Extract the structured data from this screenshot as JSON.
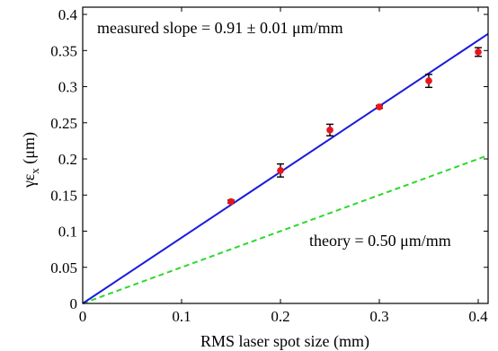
{
  "chart_data": {
    "type": "scatter",
    "xlabel": "RMS laser spot size (mm)",
    "ylabel_main": "γε",
    "ylabel_sub": "x",
    "ylabel_unit": " (μm)",
    "xlim": [
      0,
      0.41
    ],
    "ylim": [
      0,
      0.41
    ],
    "x_ticks": [
      0,
      0.1,
      0.2,
      0.3,
      0.4
    ],
    "x_tick_labels": [
      "0",
      "0.1",
      "0.2",
      "0.3",
      "0.4"
    ],
    "y_ticks": [
      0,
      0.05,
      0.1,
      0.15,
      0.2,
      0.25,
      0.3,
      0.35,
      0.4
    ],
    "y_tick_labels": [
      "0",
      "0.05",
      "0.1",
      "0.15",
      "0.2",
      "0.25",
      "0.3",
      "0.35",
      "0.4"
    ],
    "grid": false,
    "measured": {
      "x": [
        0.15,
        0.2,
        0.25,
        0.3,
        0.35,
        0.4
      ],
      "y": [
        0.141,
        0.184,
        0.24,
        0.272,
        0.308,
        0.348
      ],
      "err": [
        0.002,
        0.009,
        0.008,
        0.002,
        0.009,
        0.006
      ],
      "color": "#e8141e",
      "errorbar_color": "#000000"
    },
    "fit_line": {
      "slope": 0.91,
      "color": "#1a1adc",
      "style": "solid"
    },
    "theory_line": {
      "slope": 0.5,
      "color": "#2bd92b",
      "style": "dashed"
    },
    "annotations": {
      "measured": "measured slope = 0.91 ± 0.01 μm/mm",
      "theory": "theory = 0.50 μm/mm"
    }
  }
}
